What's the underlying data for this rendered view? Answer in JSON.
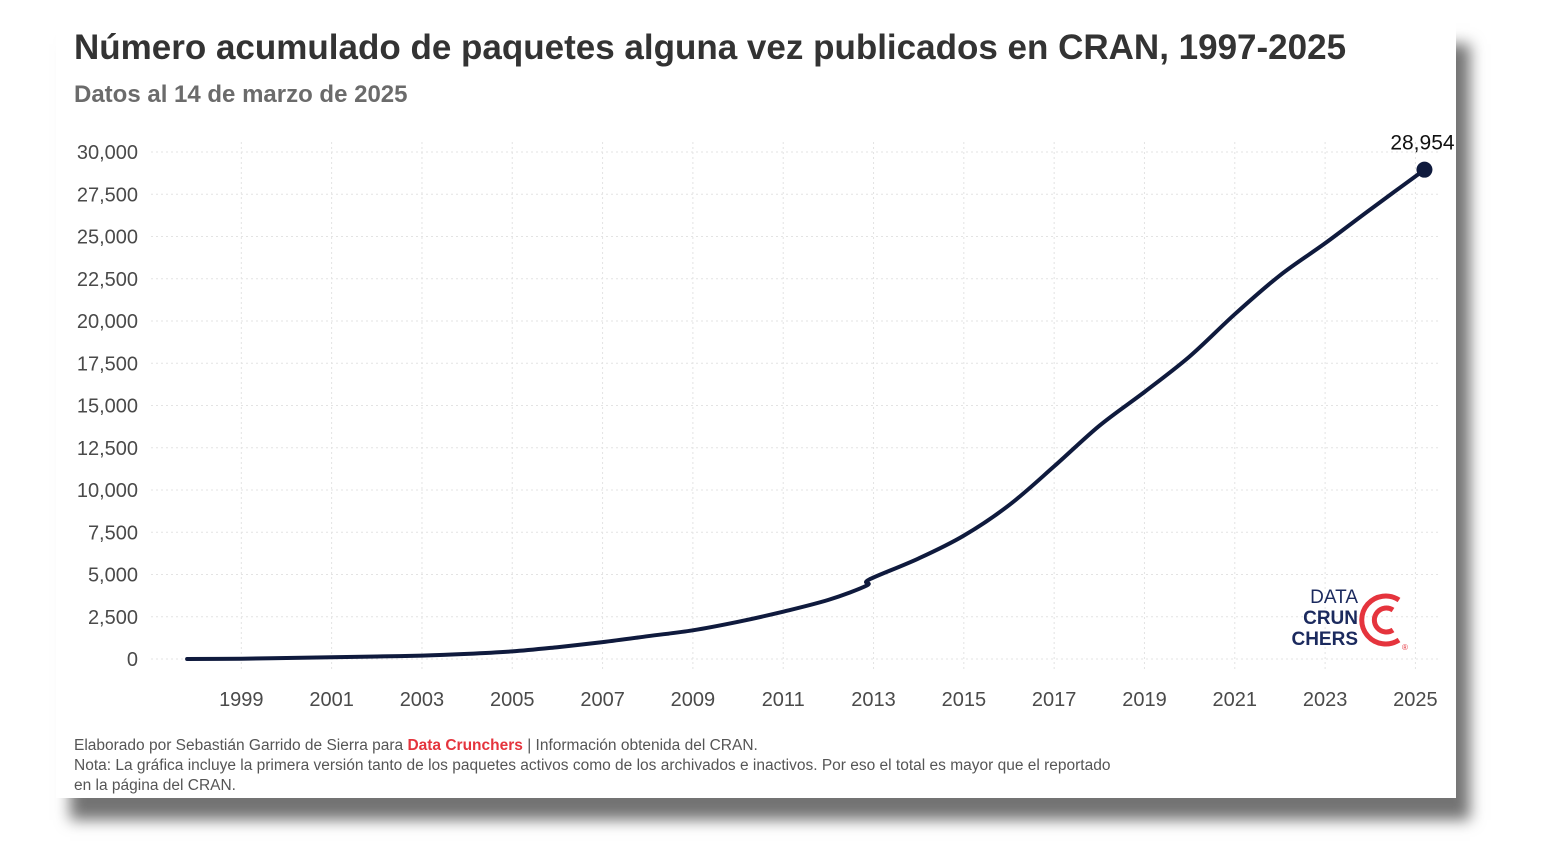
{
  "header": {
    "title": "Número acumulado de paquetes alguna vez publicados en CRAN, 1997-2025",
    "subtitle": "Datos al 14 de marzo de 2025"
  },
  "logo": {
    "line1": "DATA",
    "line2": "CRUN",
    "line3": "CHERS",
    "registered": "®",
    "color_text": "#1b2a5e",
    "color_accent": "#e5343d"
  },
  "footer": {
    "credit_prefix": "Elaborado por Sebastián Garrido de Sierra para",
    "credit_brand": "Data Crunchers",
    "credit_suffix": "| Información obtenida del CRAN.",
    "note_line1": "Nota: La gráfica incluye la primera versión tanto de los paquetes activos como de los archivados e inactivos. Por eso el total es mayor que el reportado",
    "note_line2": "en la página del CRAN."
  },
  "chart_data": {
    "type": "line",
    "title": "Número acumulado de paquetes alguna vez publicados en CRAN, 1997-2025",
    "subtitle": "Datos al 14 de marzo de 2025",
    "xlabel": "",
    "ylabel": "",
    "xlim": [
      1997.0,
      2025.5
    ],
    "ylim": [
      0,
      30000
    ],
    "x_ticks": [
      1999,
      2001,
      2003,
      2005,
      2007,
      2009,
      2011,
      2013,
      2015,
      2017,
      2019,
      2021,
      2023,
      2025
    ],
    "y_ticks": [
      0,
      2500,
      5000,
      7500,
      10000,
      12500,
      15000,
      17500,
      20000,
      22500,
      25000,
      27500,
      30000
    ],
    "y_tick_labels": [
      "0",
      "2,500",
      "5,000",
      "7,500",
      "10,000",
      "12,500",
      "15,000",
      "17,500",
      "20,000",
      "22,500",
      "25,000",
      "27,500",
      "30,000"
    ],
    "grid": true,
    "line_color": "#0f1a3d",
    "series": [
      {
        "x": [
          1997.8,
          1999.0,
          2000.0,
          2001.0,
          2002.0,
          2003.0,
          2004.0,
          2005.0,
          2006.0,
          2007.0,
          2008.0,
          2009.0,
          2010.0,
          2011.0,
          2012.0,
          2012.85,
          2012.9,
          2014.0,
          2015.0,
          2016.0,
          2017.0,
          2018.0,
          2019.0,
          2020.0,
          2021.0,
          2022.0,
          2023.0,
          2024.0,
          2025.2
        ],
        "y": [
          0,
          20,
          60,
          100,
          150,
          200,
          300,
          450,
          700,
          1000,
          1350,
          1700,
          2200,
          2800,
          3500,
          4350,
          4700,
          5950,
          7300,
          9100,
          11400,
          13800,
          15800,
          17900,
          20400,
          22700,
          24600,
          26600,
          28954
        ]
      }
    ],
    "end_point": {
      "x": 2025.2,
      "y": 28954,
      "label": "28,954"
    }
  }
}
